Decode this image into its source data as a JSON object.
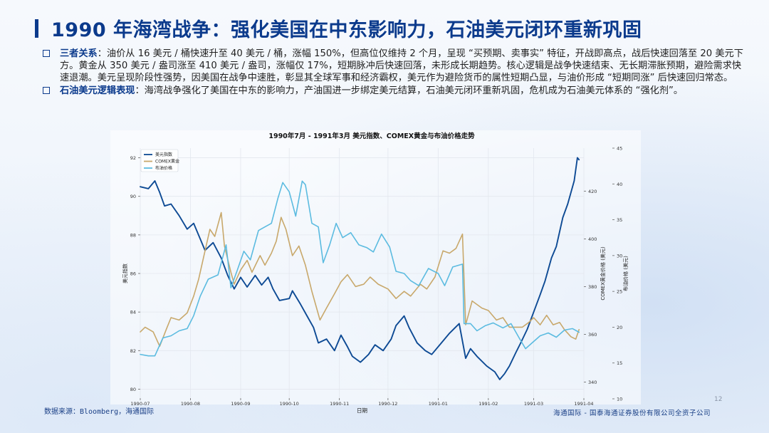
{
  "slide": {
    "title": "1990 年海湾战争：强化美国在中东影响力，石油美元闭环重新巩固",
    "bullets": [
      {
        "head": "三者关系",
        "text": "：油价从 16 美元 / 桶快速升至 40 美元 / 桶，涨幅 150%，但高位仅维持 2 个月，呈现 “买预期、卖事实” 特征，开战即高点，战后快速回落至 20 美元下方。黄金从 350 美元 / 盎司涨至 410 美元 / 盎司，涨幅仅 17%，短期脉冲后快速回落，未形成长期趋势。核心逻辑是战争快速结束、无长期滞胀预期，避险需求快速退潮。美元呈现阶段性强势，因美国在战争中速胜，彰显其全球军事和经济霸权，美元作为避险货币的属性短期凸显，与油价形成 “短期同涨” 后快速回归常态。"
      },
      {
        "head": "石油美元逻辑表现",
        "text": "：海湾战争强化了美国在中东的影响力，产油国进一步绑定美元结算，石油美元闭环重新巩固，危机成为石油美元体系的 “强化剂”。"
      }
    ],
    "source": "数据来源：Bloomberg，海通国际",
    "footer": "海通国际 - 国泰海通证券股份有限公司全资子公司",
    "page_number": "12"
  },
  "chart_data": {
    "type": "line",
    "title": "1990年7月 - 1991年3月 美元指数、COMEX黄金与布油价格走势",
    "xlabel": "日期",
    "x_ticks": [
      "1990-07",
      "1990-08",
      "1990-09",
      "1990-10",
      "1990-11",
      "1990-12",
      "1991-01",
      "1991-02",
      "1991-03",
      "1991-04"
    ],
    "x_range": [
      "1990-07-01",
      "1991-04-01"
    ],
    "axes": [
      {
        "id": "usd",
        "label": "美元指数",
        "side": "left",
        "range": [
          79.5,
          92.5
        ],
        "ticks": [
          80,
          82,
          84,
          86,
          88,
          90,
          92
        ]
      },
      {
        "id": "gold",
        "label": "COMEX黄金价格 (美元)",
        "side": "right",
        "range": [
          333,
          438
        ],
        "ticks": [
          340,
          360,
          380,
          400,
          420
        ]
      },
      {
        "id": "brent",
        "label": "布油价格 (美元)",
        "side": "right",
        "range": [
          10,
          45
        ],
        "ticks": [
          10,
          15,
          20,
          25,
          30,
          35,
          40,
          45
        ]
      }
    ],
    "legend": {
      "position": "top-left"
    },
    "grid": true,
    "series": [
      {
        "name": "美元指数",
        "axis": "usd",
        "color": "#0d4a94",
        "points": [
          [
            "1990-07-01",
            90.5
          ],
          [
            "1990-07-06",
            90.4
          ],
          [
            "1990-07-10",
            90.8
          ],
          [
            "1990-07-13",
            90.2
          ],
          [
            "1990-07-16",
            89.5
          ],
          [
            "1990-07-20",
            89.6
          ],
          [
            "1990-07-25",
            89.0
          ],
          [
            "1990-07-30",
            88.3
          ],
          [
            "1990-08-03",
            88.6
          ],
          [
            "1990-08-07",
            87.8
          ],
          [
            "1990-08-10",
            87.2
          ],
          [
            "1990-08-15",
            87.6
          ],
          [
            "1990-08-20",
            86.8
          ],
          [
            "1990-08-24",
            85.9
          ],
          [
            "1990-08-28",
            85.2
          ],
          [
            "1990-09-01",
            85.8
          ],
          [
            "1990-09-05",
            85.3
          ],
          [
            "1990-09-10",
            85.9
          ],
          [
            "1990-09-14",
            85.4
          ],
          [
            "1990-09-18",
            85.8
          ],
          [
            "1990-09-21",
            85.2
          ],
          [
            "1990-09-25",
            84.6
          ],
          [
            "1990-10-01",
            84.7
          ],
          [
            "1990-10-03",
            85.1
          ],
          [
            "1990-10-08",
            84.4
          ],
          [
            "1990-10-12",
            83.8
          ],
          [
            "1990-10-16",
            83.2
          ],
          [
            "1990-10-19",
            82.4
          ],
          [
            "1990-10-24",
            82.6
          ],
          [
            "1990-10-29",
            82.0
          ],
          [
            "1990-11-02",
            82.8
          ],
          [
            "1990-11-06",
            82.2
          ],
          [
            "1990-11-09",
            81.7
          ],
          [
            "1990-11-14",
            81.4
          ],
          [
            "1990-11-19",
            81.8
          ],
          [
            "1990-11-23",
            82.3
          ],
          [
            "1990-11-28",
            82.0
          ],
          [
            "1990-12-03",
            82.6
          ],
          [
            "1990-12-06",
            83.3
          ],
          [
            "1990-12-11",
            83.8
          ],
          [
            "1990-12-14",
            83.2
          ],
          [
            "1990-12-19",
            82.4
          ],
          [
            "1990-12-24",
            82.0
          ],
          [
            "1990-12-28",
            81.8
          ],
          [
            "1991-01-03",
            82.4
          ],
          [
            "1991-01-08",
            82.9
          ],
          [
            "1991-01-14",
            83.4
          ],
          [
            "1991-01-18",
            81.6
          ],
          [
            "1991-01-21",
            82.1
          ],
          [
            "1991-01-25",
            81.7
          ],
          [
            "1991-01-31",
            81.2
          ],
          [
            "1991-02-05",
            80.9
          ],
          [
            "1991-02-08",
            80.5
          ],
          [
            "1991-02-11",
            80.8
          ],
          [
            "1991-02-14",
            81.2
          ],
          [
            "1991-02-18",
            81.9
          ],
          [
            "1991-02-21",
            82.4
          ],
          [
            "1991-02-25",
            83.1
          ],
          [
            "1991-03-01",
            84.0
          ],
          [
            "1991-03-05",
            84.9
          ],
          [
            "1991-03-08",
            85.6
          ],
          [
            "1991-03-12",
            86.8
          ],
          [
            "1991-03-15",
            87.4
          ],
          [
            "1991-03-19",
            88.9
          ],
          [
            "1991-03-22",
            89.6
          ],
          [
            "1991-03-26",
            90.8
          ],
          [
            "1991-03-28",
            92.0
          ],
          [
            "1991-03-29",
            91.9
          ]
        ]
      },
      {
        "name": "COMEX黄金",
        "axis": "gold",
        "color": "#c8a86b",
        "points": [
          [
            "1990-07-01",
            361
          ],
          [
            "1990-07-04",
            363
          ],
          [
            "1990-07-09",
            361
          ],
          [
            "1990-07-13",
            355
          ],
          [
            "1990-07-17",
            362
          ],
          [
            "1990-07-20",
            367
          ],
          [
            "1990-07-25",
            366
          ],
          [
            "1990-07-30",
            369
          ],
          [
            "1990-08-03",
            376
          ],
          [
            "1990-08-06",
            383
          ],
          [
            "1990-08-09",
            392
          ],
          [
            "1990-08-13",
            404
          ],
          [
            "1990-08-16",
            401
          ],
          [
            "1990-08-20",
            411
          ],
          [
            "1990-08-22",
            397
          ],
          [
            "1990-08-26",
            386
          ],
          [
            "1990-08-28",
            381
          ],
          [
            "1990-09-01",
            387
          ],
          [
            "1990-09-05",
            391
          ],
          [
            "1990-09-08",
            386
          ],
          [
            "1990-09-13",
            393
          ],
          [
            "1990-09-16",
            389
          ],
          [
            "1990-09-20",
            394
          ],
          [
            "1990-09-23",
            399
          ],
          [
            "1990-09-26",
            409
          ],
          [
            "1990-09-29",
            404
          ],
          [
            "1990-10-03",
            393
          ],
          [
            "1990-10-07",
            397
          ],
          [
            "1990-10-11",
            389
          ],
          [
            "1990-10-15",
            378
          ],
          [
            "1990-10-20",
            366
          ],
          [
            "1990-10-24",
            371
          ],
          [
            "1990-10-29",
            377
          ],
          [
            "1990-11-02",
            382
          ],
          [
            "1990-11-06",
            385
          ],
          [
            "1990-11-11",
            380
          ],
          [
            "1990-11-16",
            381
          ],
          [
            "1990-11-20",
            384
          ],
          [
            "1990-11-25",
            381
          ],
          [
            "1990-12-01",
            379
          ],
          [
            "1990-12-06",
            375
          ],
          [
            "1990-12-11",
            378
          ],
          [
            "1990-12-15",
            376
          ],
          [
            "1990-12-21",
            381
          ],
          [
            "1990-12-25",
            379
          ],
          [
            "1990-12-30",
            384
          ],
          [
            "1991-01-04",
            395
          ],
          [
            "1991-01-08",
            394
          ],
          [
            "1991-01-12",
            396
          ],
          [
            "1991-01-16",
            402
          ],
          [
            "1991-01-18",
            364
          ],
          [
            "1991-01-22",
            374
          ],
          [
            "1991-01-28",
            371
          ],
          [
            "1991-02-01",
            370
          ],
          [
            "1991-02-06",
            366
          ],
          [
            "1991-02-10",
            367
          ],
          [
            "1991-02-14",
            363
          ],
          [
            "1991-02-18",
            363
          ],
          [
            "1991-02-22",
            363
          ],
          [
            "1991-02-26",
            365
          ],
          [
            "1991-03-01",
            367
          ],
          [
            "1991-03-05",
            364
          ],
          [
            "1991-03-09",
            368
          ],
          [
            "1991-03-13",
            364
          ],
          [
            "1991-03-17",
            365
          ],
          [
            "1991-03-20",
            362
          ],
          [
            "1991-03-24",
            359
          ],
          [
            "1991-03-27",
            358
          ],
          [
            "1991-03-29",
            362
          ]
        ]
      },
      {
        "name": "布油价格",
        "axis": "brent",
        "color": "#5bbbe0",
        "points": [
          [
            "1990-07-01",
            16.2
          ],
          [
            "1990-07-06",
            16.0
          ],
          [
            "1990-07-10",
            16.0
          ],
          [
            "1990-07-15",
            18.5
          ],
          [
            "1990-07-20",
            18.8
          ],
          [
            "1990-07-25",
            19.5
          ],
          [
            "1990-07-30",
            19.8
          ],
          [
            "1990-08-03",
            21.6
          ],
          [
            "1990-08-07",
            24.3
          ],
          [
            "1990-08-12",
            26.7
          ],
          [
            "1990-08-18",
            27.3
          ],
          [
            "1990-08-23",
            31.5
          ],
          [
            "1990-08-26",
            25.5
          ],
          [
            "1990-08-30",
            28.0
          ],
          [
            "1990-09-03",
            30.6
          ],
          [
            "1990-09-07",
            29.4
          ],
          [
            "1990-09-12",
            33.5
          ],
          [
            "1990-09-16",
            34.0
          ],
          [
            "1990-09-20",
            34.5
          ],
          [
            "1990-09-24",
            38.0
          ],
          [
            "1990-09-27",
            40.2
          ],
          [
            "1990-10-01",
            38.9
          ],
          [
            "1990-10-05",
            35.5
          ],
          [
            "1990-10-09",
            40.4
          ],
          [
            "1990-10-11",
            39.9
          ],
          [
            "1990-10-15",
            34.5
          ],
          [
            "1990-10-19",
            34.0
          ],
          [
            "1990-10-22",
            29.0
          ],
          [
            "1990-10-26",
            31.5
          ],
          [
            "1990-10-30",
            34.5
          ],
          [
            "1990-11-03",
            32.5
          ],
          [
            "1990-11-08",
            33.2
          ],
          [
            "1990-11-13",
            31.5
          ],
          [
            "1990-11-18",
            31.1
          ],
          [
            "1990-11-22",
            30.5
          ],
          [
            "1990-11-27",
            33.0
          ],
          [
            "1990-12-02",
            31.2
          ],
          [
            "1990-12-06",
            27.8
          ],
          [
            "1990-12-11",
            27.5
          ],
          [
            "1990-12-15",
            26.5
          ],
          [
            "1990-12-20",
            25.8
          ],
          [
            "1990-12-26",
            28.2
          ],
          [
            "1991-01-01",
            27.5
          ],
          [
            "1991-01-05",
            25.8
          ],
          [
            "1991-01-10",
            28.4
          ],
          [
            "1991-01-16",
            28.8
          ],
          [
            "1991-01-17",
            20.5
          ],
          [
            "1991-01-21",
            20.5
          ],
          [
            "1991-01-25",
            19.5
          ],
          [
            "1991-01-30",
            20.2
          ],
          [
            "1991-02-04",
            20.6
          ],
          [
            "1991-02-10",
            19.9
          ],
          [
            "1991-02-15",
            20.5
          ],
          [
            "1991-02-20",
            18.5
          ],
          [
            "1991-02-24",
            17.0
          ],
          [
            "1991-03-01",
            18.0
          ],
          [
            "1991-03-05",
            18.8
          ],
          [
            "1991-03-10",
            19.2
          ],
          [
            "1991-03-15",
            18.6
          ],
          [
            "1991-03-20",
            19.6
          ],
          [
            "1991-03-25",
            19.8
          ],
          [
            "1991-03-29",
            19.3
          ]
        ]
      }
    ]
  }
}
